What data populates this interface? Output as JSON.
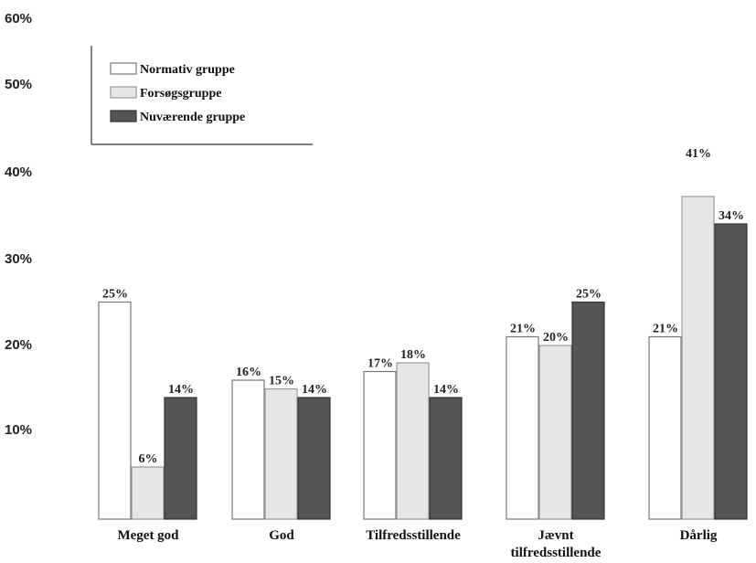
{
  "chart_data": {
    "type": "bar",
    "categories": [
      "Meget god",
      "God",
      "Tilfredsstillende",
      "Jævnt tilfredsstillende",
      "Dårlig"
    ],
    "series": [
      {
        "name": "Normativ gruppe",
        "values": [
          25,
          16,
          17,
          21,
          21
        ],
        "color": "#ffffff"
      },
      {
        "name": "Forsøgsgruppe",
        "values": [
          6,
          15,
          18,
          20,
          41
        ],
        "color": "#e6e6e6"
      },
      {
        "name": "Nuværende gruppe",
        "values": [
          14,
          14,
          14,
          25,
          34
        ],
        "color": "#555555"
      }
    ],
    "value_labels": [
      [
        "25%",
        "16%",
        "17%",
        "21%",
        "21%"
      ],
      [
        "6%",
        "15%",
        "18%",
        "20%",
        "41%"
      ],
      [
        "14%",
        "14%",
        "14%",
        "25%",
        "34%"
      ]
    ],
    "y_ticks": [
      "10%",
      "20%",
      "30%",
      "40%",
      "50%",
      "60%"
    ],
    "ylim": [
      0,
      60
    ],
    "title": "",
    "xlabel": "",
    "ylabel": "",
    "grid": false,
    "legend_position": "top-left"
  }
}
